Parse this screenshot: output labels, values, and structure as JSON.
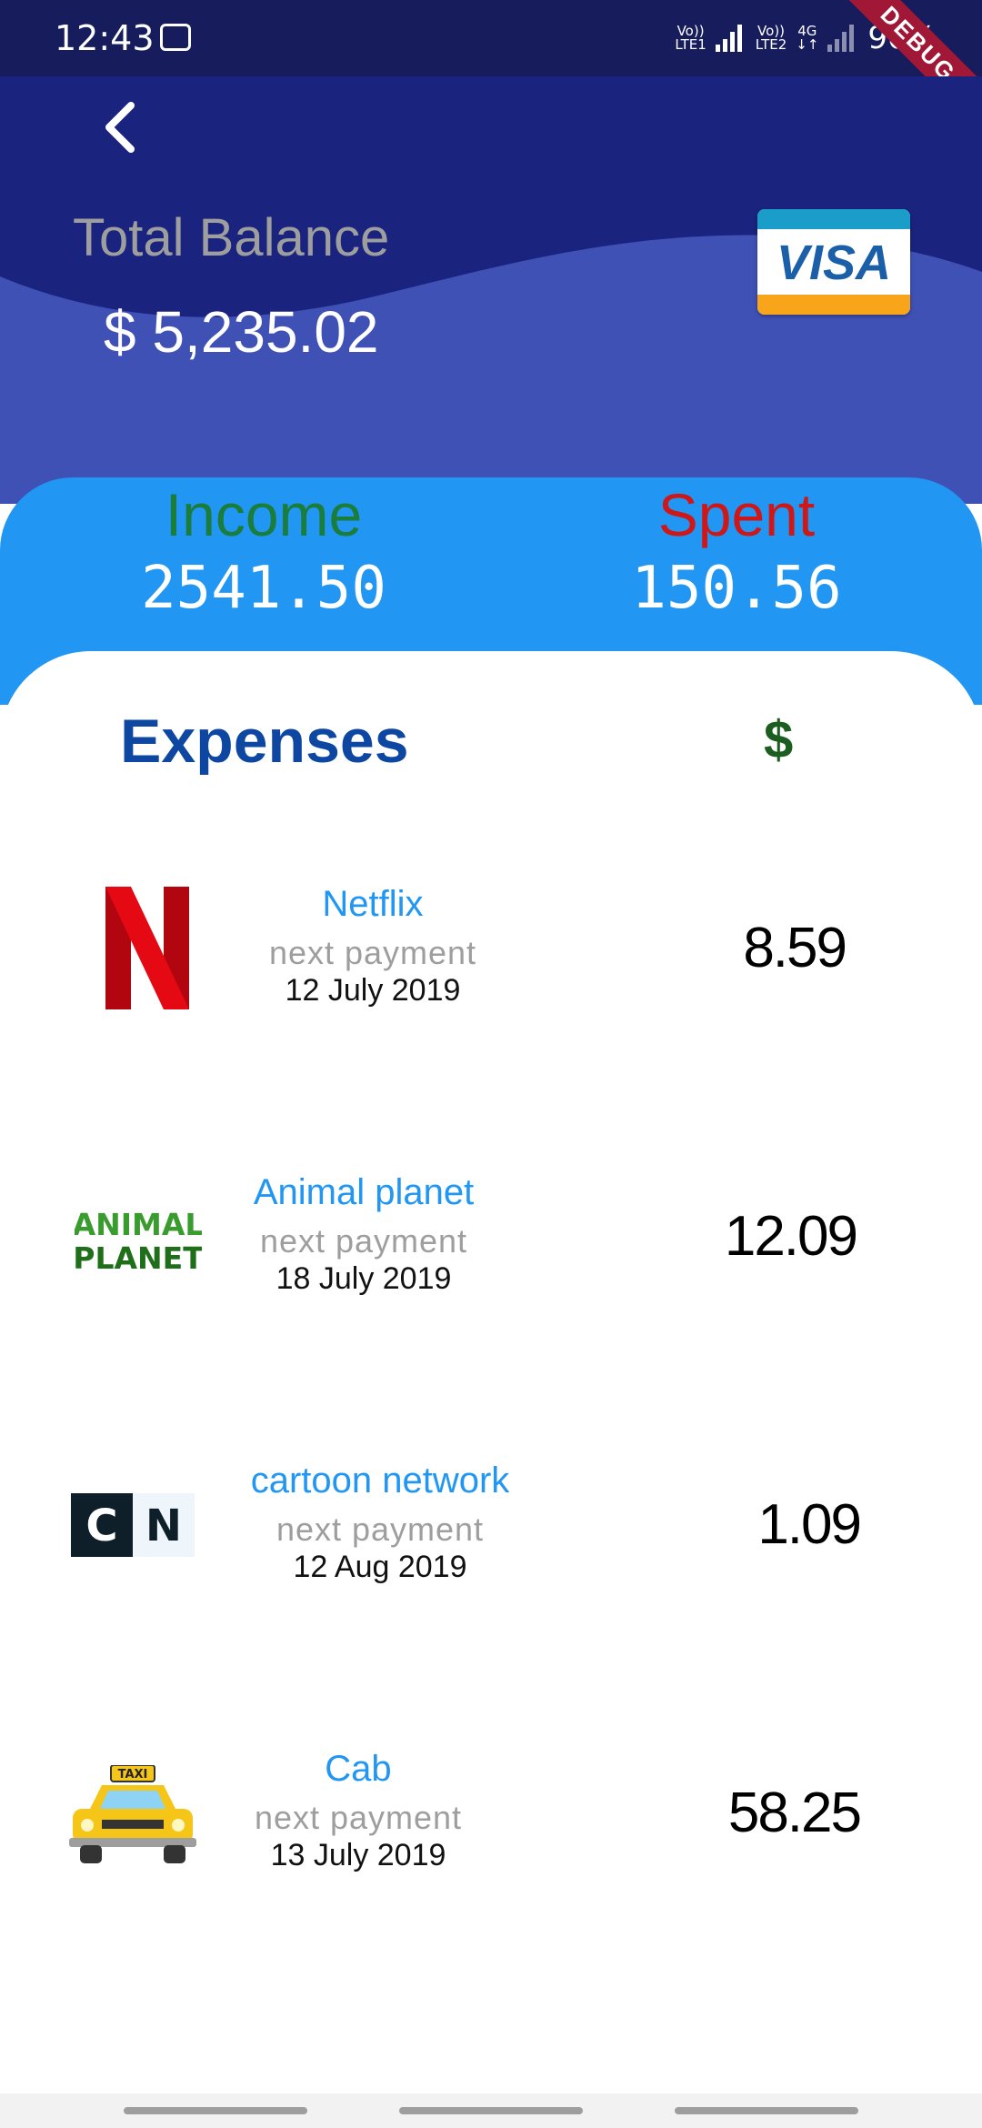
{
  "status": {
    "time": "12:43",
    "net1": [
      "Vo))",
      "LTE1"
    ],
    "net2": [
      "Vo))",
      "LTE2"
    ],
    "net_type": "4G",
    "battery": "90%"
  },
  "debug_label": "DEBUG",
  "header": {
    "total_label": "Total Balance",
    "total_value": "$ 5,235.02",
    "card_brand": "VISA"
  },
  "summary": {
    "income_label": "Income",
    "income_value": "2541.50",
    "spent_label": "Spent",
    "spent_value": "150.56"
  },
  "expenses": {
    "title": "Expenses",
    "currency_symbol": "$",
    "items": [
      {
        "name": "Netflix",
        "next_label": "next payment",
        "date": "12 July 2019",
        "amount": "8.59",
        "logo": "netflix-logo"
      },
      {
        "name": "Animal planet",
        "next_label": "next payment",
        "date": "18 July 2019",
        "amount": "12.09",
        "logo": "animal-planet-logo",
        "logo_text_top": "ANIMAL",
        "logo_text_bottom": "PLANET"
      },
      {
        "name": "cartoon network",
        "next_label": "next payment",
        "date": "12 Aug 2019",
        "amount": "1.09",
        "logo": "cartoon-network-logo",
        "logo_c": "C",
        "logo_n": "N"
      },
      {
        "name": "Cab",
        "next_label": "next payment",
        "date": "13 July 2019",
        "amount": "58.25",
        "logo": "taxi-icon",
        "logo_sign": "TAXI"
      }
    ]
  },
  "colors": {
    "header": "#1a237e",
    "wave": "#3f51b5",
    "summary": "#2196f3",
    "income": "#1b7d3a",
    "spent": "#d01717",
    "title": "#0d47a1"
  }
}
